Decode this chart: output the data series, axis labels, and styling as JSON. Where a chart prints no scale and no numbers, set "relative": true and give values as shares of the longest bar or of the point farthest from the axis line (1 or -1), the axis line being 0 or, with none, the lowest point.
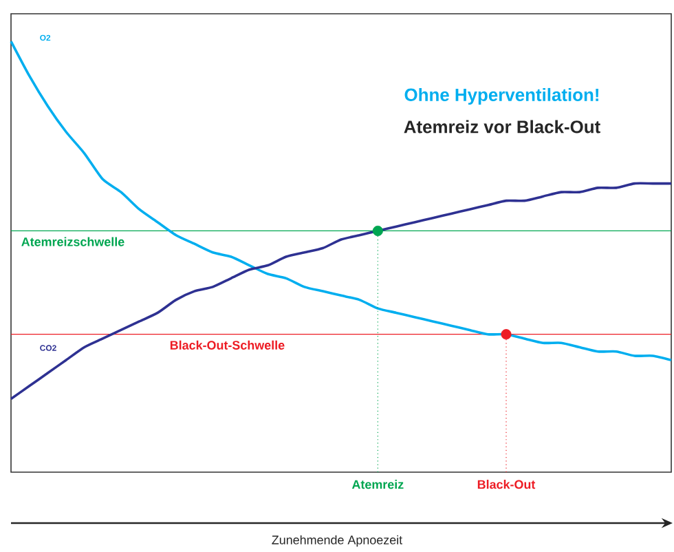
{
  "chart_data": {
    "type": "line",
    "title": "Ohne Hyperventilation!",
    "subtitle": "Atemreiz vor Black-Out",
    "xlabel": "Zunehmende Apnoezeit",
    "relative": true,
    "tick_labels": "x",
    "grid": false,
    "legend": false,
    "line_style": "solid",
    "categories": [
      null,
      null,
      null,
      null,
      null,
      null,
      null,
      null,
      null,
      null,
      null,
      null,
      null,
      null,
      null,
      null,
      null,
      null,
      null,
      null,
      "Atemreiz",
      null,
      null,
      null,
      null,
      null,
      null,
      "Black-Out",
      null,
      null,
      null,
      null,
      null,
      null,
      null,
      null,
      null
    ],
    "series": [
      {
        "name": "O2",
        "color": "#00aeef",
        "values": [
          1.0,
          0.92,
          0.85,
          0.79,
          0.74,
          0.68,
          0.65,
          0.61,
          0.58,
          0.55,
          0.53,
          0.51,
          0.5,
          0.48,
          0.46,
          0.45,
          0.43,
          0.42,
          0.41,
          0.4,
          0.38,
          0.37,
          0.36,
          0.35,
          0.34,
          0.33,
          0.32,
          0.32,
          0.31,
          0.3,
          0.3,
          0.29,
          0.28,
          0.28,
          0.27,
          0.27,
          0.26
        ]
      },
      {
        "name": "CO2",
        "color": "#2e3192",
        "values": [
          0.17,
          0.2,
          0.23,
          0.26,
          0.29,
          0.31,
          0.33,
          0.35,
          0.37,
          0.4,
          0.42,
          0.43,
          0.45,
          0.47,
          0.48,
          0.5,
          0.51,
          0.52,
          0.54,
          0.55,
          0.56,
          0.57,
          0.58,
          0.59,
          0.6,
          0.61,
          0.62,
          0.63,
          0.63,
          0.64,
          0.65,
          0.65,
          0.66,
          0.66,
          0.67,
          0.67,
          0.67
        ]
      },
      {
        "type": "lollipop",
        "color": "#00a651",
        "line_style": "dotted",
        "values": [
          null,
          null,
          null,
          null,
          null,
          null,
          null,
          null,
          null,
          null,
          null,
          null,
          null,
          null,
          null,
          null,
          null,
          null,
          null,
          null,
          0.56,
          null,
          null,
          null,
          null,
          null,
          null,
          null,
          null,
          null,
          null,
          null,
          null,
          null,
          null,
          null,
          null
        ]
      },
      {
        "type": "lollipop",
        "color": "#ed1c24",
        "line_style": "dotted",
        "values": [
          null,
          null,
          null,
          null,
          null,
          null,
          null,
          null,
          null,
          null,
          null,
          null,
          null,
          null,
          null,
          null,
          null,
          null,
          null,
          null,
          null,
          null,
          null,
          null,
          null,
          null,
          null,
          0.32,
          null,
          null,
          null,
          null,
          null,
          null,
          null,
          null,
          null
        ]
      }
    ],
    "ref_lines": [
      {
        "axis": "y",
        "value": 0.56,
        "label": "Atemreizschwelle",
        "color": "#00a651"
      },
      {
        "axis": "y",
        "value": 0.32,
        "label": "Black-Out-Schwelle",
        "color": "#ed1c24"
      }
    ]
  }
}
